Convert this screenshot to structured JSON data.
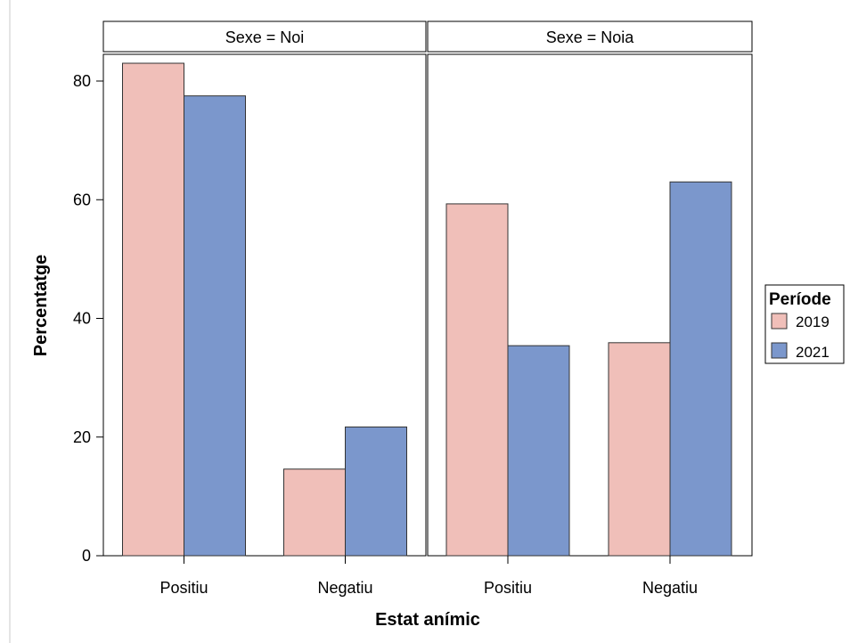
{
  "chart_data": {
    "type": "bar",
    "ylabel": "Percentatge",
    "xlabel": "Estat anímic",
    "ylim": [
      0,
      85
    ],
    "yticks": [
      0,
      20,
      40,
      60,
      80
    ],
    "categories": [
      "Positiu",
      "Negatiu"
    ],
    "legend": {
      "title": "Període",
      "placement": "right"
    },
    "colors": {
      "2019": "#f0bfb9",
      "2021": "#7b97cc"
    },
    "panels": [
      {
        "strip_label": "Sexe = Noi",
        "series": [
          {
            "name": "2019",
            "values": [
              83.0,
              14.6
            ]
          },
          {
            "name": "2021",
            "values": [
              77.5,
              21.7
            ]
          }
        ]
      },
      {
        "strip_label": "Sexe = Noia",
        "series": [
          {
            "name": "2019",
            "values": [
              59.3,
              35.9
            ]
          },
          {
            "name": "2021",
            "values": [
              35.4,
              63.0
            ]
          }
        ]
      }
    ]
  }
}
